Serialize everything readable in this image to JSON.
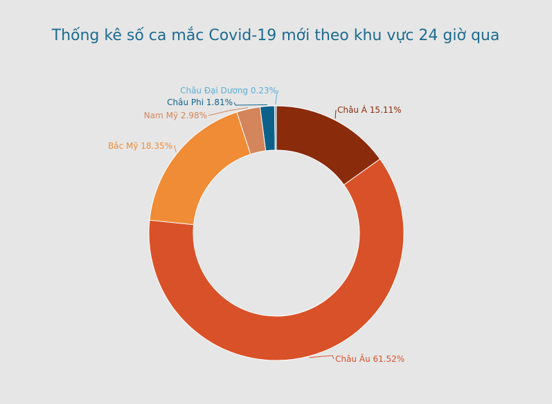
{
  "chart_data": {
    "type": "pie",
    "title": "Thống kê số ca mắc Covid-19 mới theo khu vực 24 giờ qua",
    "categories": [
      "Châu Á",
      "Châu Âu",
      "Bắc Mỹ",
      "Nam Mỹ",
      "Châu Phi",
      "Châu Đại Dương"
    ],
    "values": [
      15.11,
      61.52,
      18.35,
      2.98,
      1.81,
      0.23
    ],
    "value_labels": [
      "15.11%",
      "61.52%",
      "18.35%",
      "2.98%",
      "1.81%",
      "0.23%"
    ],
    "colors": [
      "#8a2b0c",
      "#d95128",
      "#f08b36",
      "#d4855b",
      "#0d6189",
      "#5aaed8"
    ]
  }
}
